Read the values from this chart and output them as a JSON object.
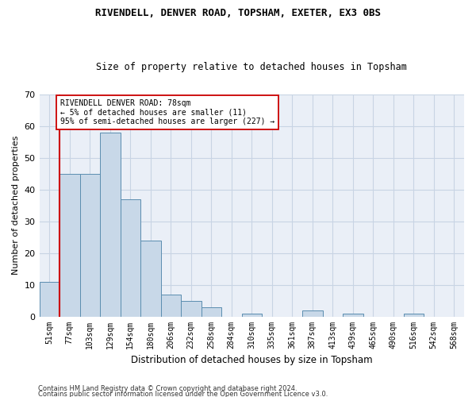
{
  "title1": "RIVENDELL, DENVER ROAD, TOPSHAM, EXETER, EX3 0BS",
  "title2": "Size of property relative to detached houses in Topsham",
  "xlabel": "Distribution of detached houses by size in Topsham",
  "ylabel": "Number of detached properties",
  "footnote1": "Contains HM Land Registry data © Crown copyright and database right 2024.",
  "footnote2": "Contains public sector information licensed under the Open Government Licence v3.0.",
  "categories": [
    "51sqm",
    "77sqm",
    "103sqm",
    "129sqm",
    "154sqm",
    "180sqm",
    "206sqm",
    "232sqm",
    "258sqm",
    "284sqm",
    "310sqm",
    "335sqm",
    "361sqm",
    "387sqm",
    "413sqm",
    "439sqm",
    "465sqm",
    "490sqm",
    "516sqm",
    "542sqm",
    "568sqm"
  ],
  "values": [
    11,
    45,
    45,
    58,
    37,
    24,
    7,
    5,
    3,
    0,
    1,
    0,
    0,
    2,
    0,
    1,
    0,
    0,
    1,
    0,
    0
  ],
  "bar_color": "#c8d8e8",
  "bar_edge_color": "#5b8db0",
  "bar_edge_width": 0.7,
  "grid_color": "#c8d4e4",
  "bg_color": "#eaeff7",
  "property_line_color": "#cc0000",
  "annotation_line1": "RIVENDELL DENVER ROAD: 78sqm",
  "annotation_line2": "← 5% of detached houses are smaller (11)",
  "annotation_line3": "95% of semi-detached houses are larger (227) →",
  "annotation_box_color": "#ffffff",
  "annotation_box_edge": "#cc0000",
  "ylim": [
    0,
    70
  ],
  "yticks": [
    0,
    10,
    20,
    30,
    40,
    50,
    60,
    70
  ]
}
